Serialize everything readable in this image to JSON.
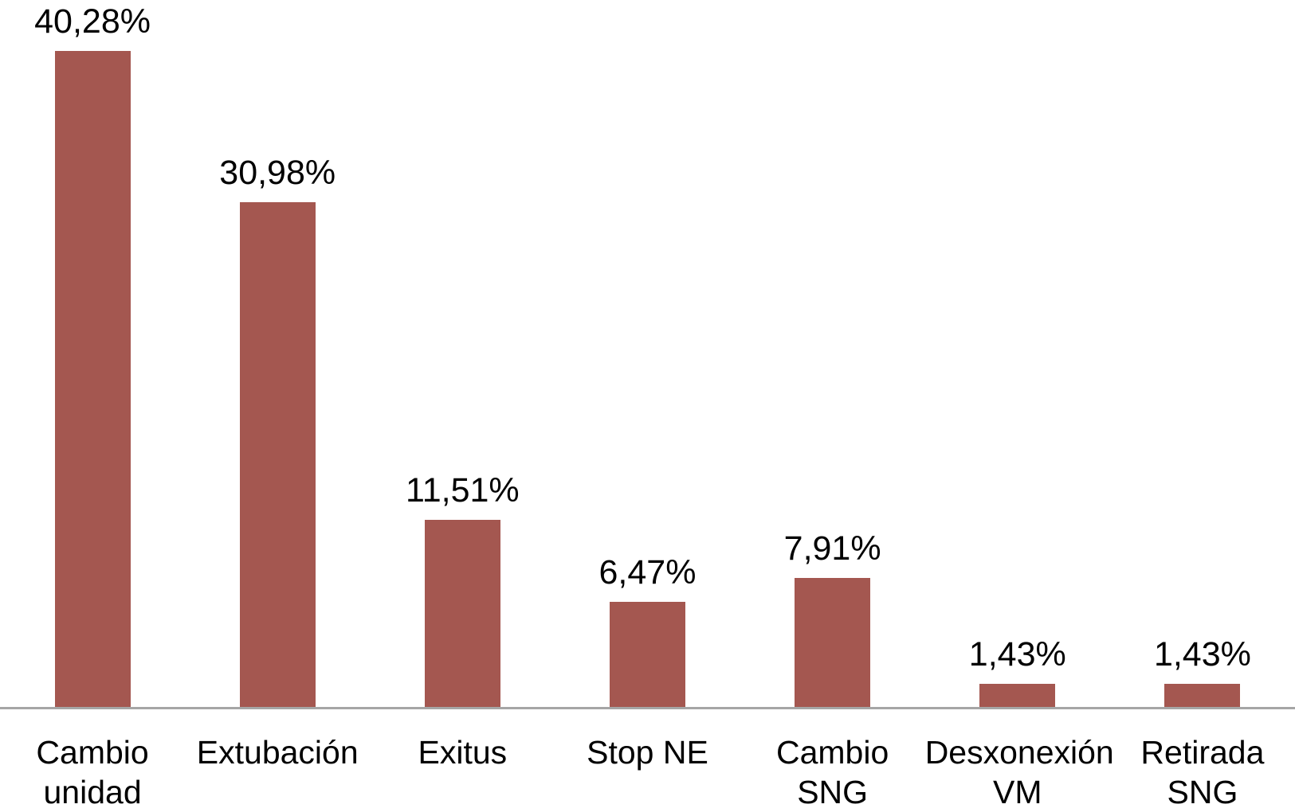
{
  "chart_data": {
    "type": "bar",
    "categories": [
      "Cambio\nunidad",
      "Extubación",
      "Exitus",
      "Stop NE",
      "Cambio\nSNG",
      "Desxonexión\nVM",
      "Retirada\nSNG"
    ],
    "values": [
      40.28,
      30.98,
      11.51,
      6.47,
      7.91,
      1.43,
      1.43
    ],
    "value_labels": [
      "40,28%",
      "30,98%",
      "11,51%",
      "6,47%",
      "7,91%",
      "1,43%",
      "1,43%"
    ],
    "title": "",
    "xlabel": "",
    "ylabel": "",
    "ylim": [
      0,
      43.4
    ],
    "grid": false,
    "legend": false,
    "colors": {
      "bar": "#A45750",
      "axis_line": "#A6A6A6",
      "label_text": "#000000",
      "background": "#FFFFFF"
    }
  }
}
